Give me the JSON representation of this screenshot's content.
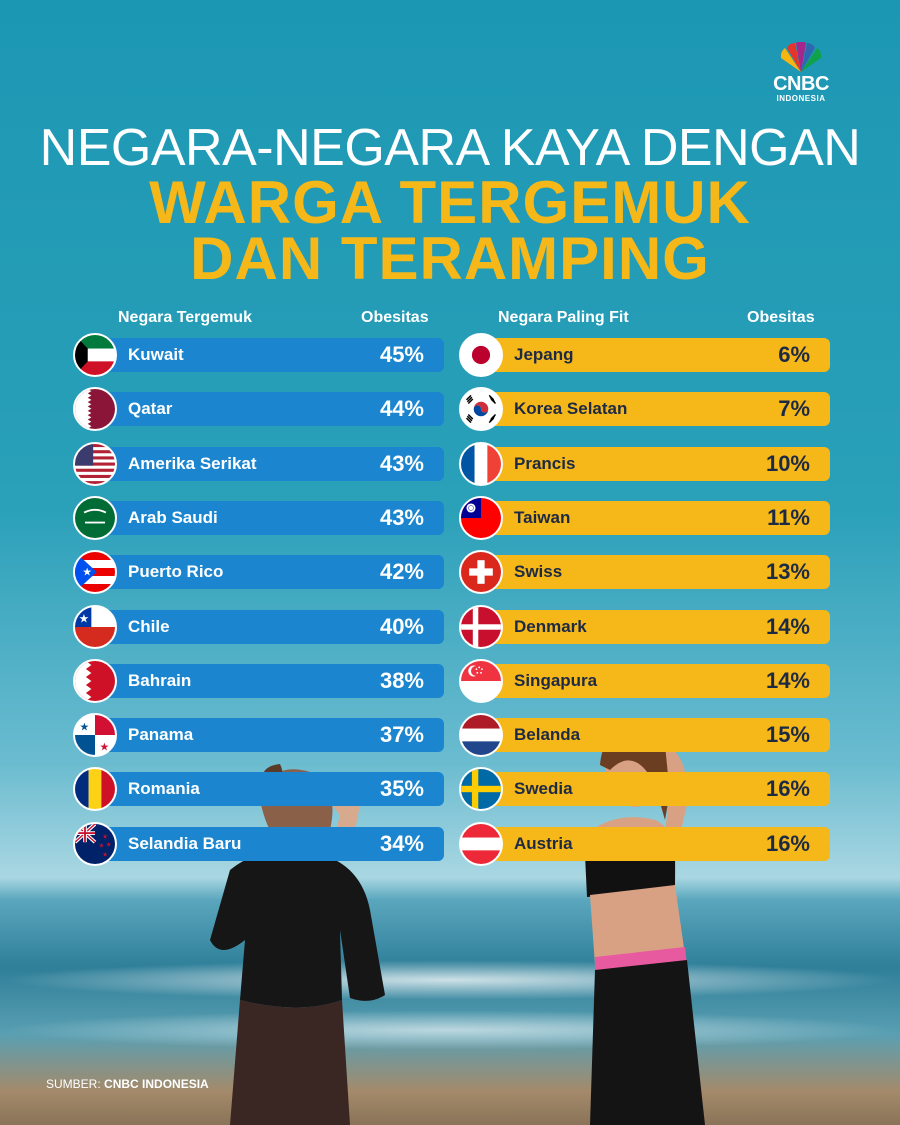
{
  "logo": {
    "brand": "CNBC",
    "sub": "INDONESIA"
  },
  "title": {
    "line1": "NEGARA-NEGARA KAYA DENGAN",
    "line2": "WARGA TERGEMUK",
    "line3": "DAN TERAMPING"
  },
  "left": {
    "header_country": "Negara Tergemuk",
    "header_value": "Obesitas",
    "items": [
      {
        "name": "Kuwait",
        "value": "45%",
        "flag": "kuwait-flag-icon"
      },
      {
        "name": "Qatar",
        "value": "44%",
        "flag": "qatar-flag-icon"
      },
      {
        "name": "Amerika Serikat",
        "value": "43%",
        "flag": "usa-flag-icon"
      },
      {
        "name": "Arab Saudi",
        "value": "43%",
        "flag": "saudi-flag-icon"
      },
      {
        "name": "Puerto Rico",
        "value": "42%",
        "flag": "puerto-rico-flag-icon"
      },
      {
        "name": "Chile",
        "value": "40%",
        "flag": "chile-flag-icon"
      },
      {
        "name": "Bahrain",
        "value": "38%",
        "flag": "bahrain-flag-icon"
      },
      {
        "name": "Panama",
        "value": "37%",
        "flag": "panama-flag-icon"
      },
      {
        "name": "Romania",
        "value": "35%",
        "flag": "romania-flag-icon"
      },
      {
        "name": "Selandia Baru",
        "value": "34%",
        "flag": "new-zealand-flag-icon"
      }
    ]
  },
  "right": {
    "header_country": "Negara Paling Fit",
    "header_value": "Obesitas",
    "items": [
      {
        "name": "Jepang",
        "value": "6%",
        "flag": "japan-flag-icon"
      },
      {
        "name": "Korea Selatan",
        "value": "7%",
        "flag": "south-korea-flag-icon"
      },
      {
        "name": "Prancis",
        "value": "10%",
        "flag": "france-flag-icon"
      },
      {
        "name": "Taiwan",
        "value": "11%",
        "flag": "taiwan-flag-icon"
      },
      {
        "name": "Swiss",
        "value": "13%",
        "flag": "switzerland-flag-icon"
      },
      {
        "name": "Denmark",
        "value": "14%",
        "flag": "denmark-flag-icon"
      },
      {
        "name": "Singapura",
        "value": "14%",
        "flag": "singapore-flag-icon"
      },
      {
        "name": "Belanda",
        "value": "15%",
        "flag": "netherlands-flag-icon"
      },
      {
        "name": "Swedia",
        "value": "16%",
        "flag": "sweden-flag-icon"
      },
      {
        "name": "Austria",
        "value": "16%",
        "flag": "austria-flag-icon"
      }
    ]
  },
  "source": {
    "label": "SUMBER:",
    "value": "CNBC INDONESIA"
  },
  "colors": {
    "blue_bar": "#1b86cf",
    "gold_bar": "#f6b719",
    "title_gold": "#f6b719",
    "background": "#1c97b3"
  }
}
